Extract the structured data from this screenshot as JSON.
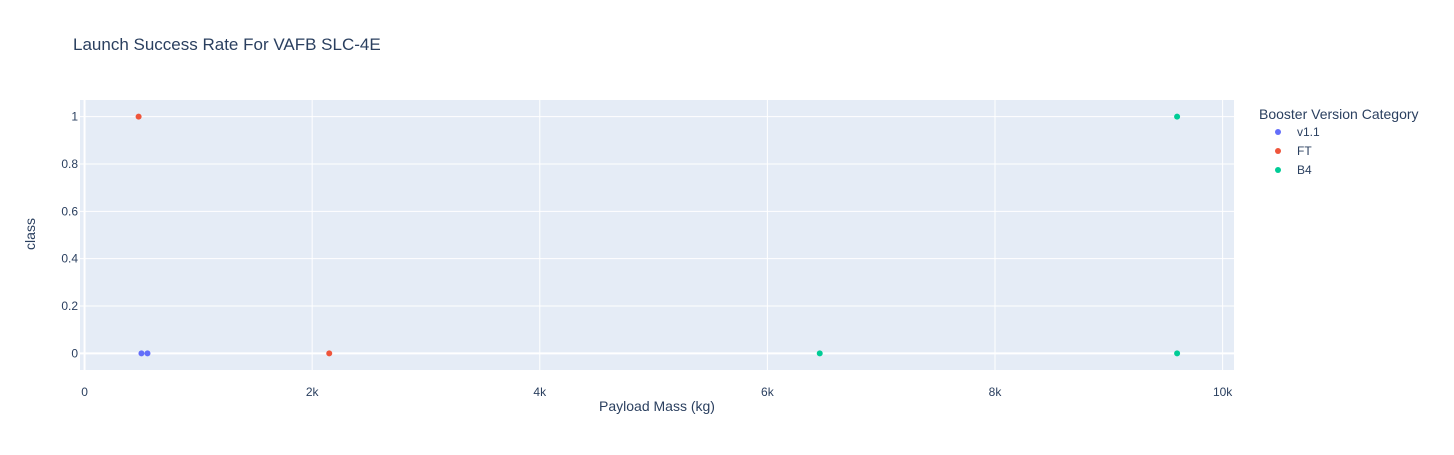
{
  "chart_data": {
    "type": "scatter",
    "title": "Launch Success Rate For VAFB SLC-4E",
    "xlabel": "Payload Mass (kg)",
    "ylabel": "class",
    "xlim": [
      -40,
      10100
    ],
    "ylim": [
      -0.07,
      1.07
    ],
    "x_ticks": [
      0,
      2000,
      4000,
      6000,
      8000,
      10000
    ],
    "x_tick_labels": [
      "0",
      "2k",
      "4k",
      "6k",
      "8k",
      "10k"
    ],
    "y_ticks": [
      0,
      0.2,
      0.4,
      0.6,
      0.8,
      1
    ],
    "y_tick_labels": [
      "0",
      "0.2",
      "0.4",
      "0.6",
      "0.8",
      "1"
    ],
    "grid": true,
    "legend": {
      "title": "Booster Version Category",
      "placement": "right"
    },
    "series": [
      {
        "name": "v1.1",
        "color": "#636efa",
        "points": [
          {
            "x": 500,
            "y": 0
          },
          {
            "x": 553,
            "y": 0
          }
        ]
      },
      {
        "name": "FT",
        "color": "#ef553b",
        "points": [
          {
            "x": 475,
            "y": 1
          },
          {
            "x": 2150,
            "y": 0
          }
        ]
      },
      {
        "name": "B4",
        "color": "#00cc96",
        "points": [
          {
            "x": 9600,
            "y": 1
          },
          {
            "x": 6460,
            "y": 0
          },
          {
            "x": 9600,
            "y": 0
          }
        ]
      }
    ]
  }
}
